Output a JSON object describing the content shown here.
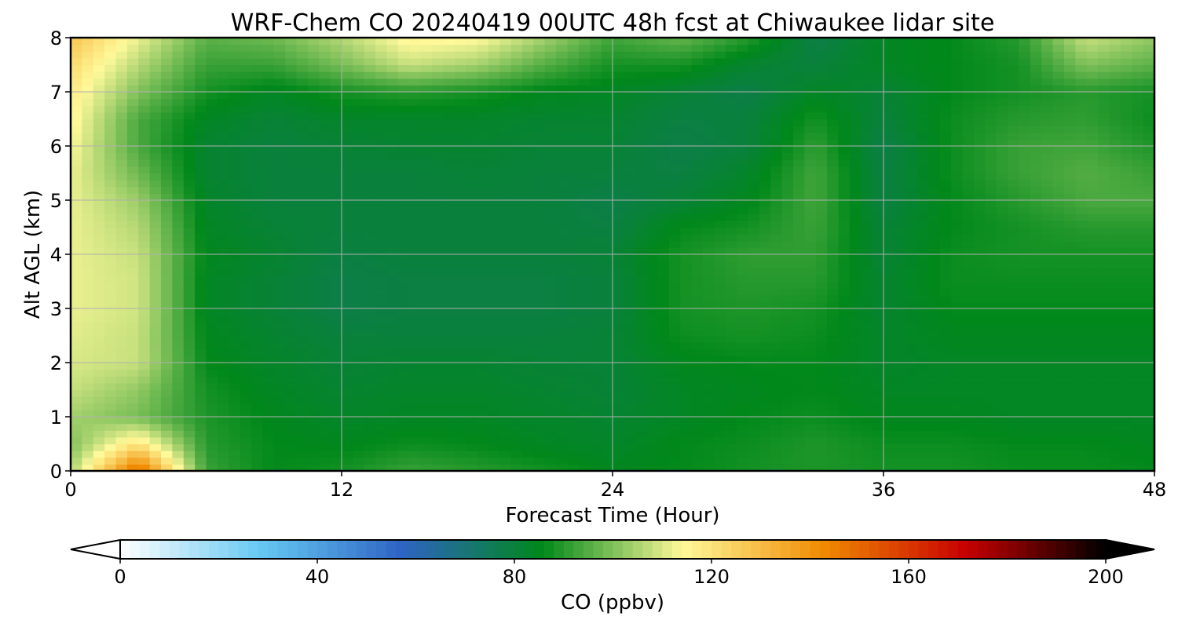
{
  "chart_data": {
    "type": "heatmap",
    "title": "WRF-Chem CO  20240419 00UTC 48h fcst at Chiwaukee lidar site",
    "xlabel": "Forecast Time (Hour)",
    "ylabel": "Alt AGL (km)",
    "x_ticks": [
      "0",
      "12",
      "24",
      "36",
      "48"
    ],
    "y_ticks": [
      "0",
      "1",
      "2",
      "3",
      "4",
      "5",
      "6",
      "7",
      "8"
    ],
    "xlim": [
      0,
      48
    ],
    "ylim": [
      0,
      8
    ],
    "grid": true,
    "x": [
      0,
      3,
      6,
      9,
      12,
      15,
      18,
      21,
      24,
      27,
      30,
      33,
      36,
      39,
      42,
      45,
      48
    ],
    "y": [
      0,
      0.5,
      1,
      1.5,
      2,
      2.5,
      3,
      3.5,
      4,
      4.5,
      5,
      5.5,
      6,
      6.5,
      7,
      7.5,
      8
    ],
    "z": [
      [
        105,
        150,
        92,
        86,
        88,
        92,
        90,
        88,
        85,
        86,
        88,
        89,
        88,
        88,
        87,
        87,
        86
      ],
      [
        100,
        120,
        90,
        86,
        85,
        87,
        86,
        84,
        83,
        86,
        87,
        89,
        87,
        87,
        86,
        86,
        85
      ],
      [
        104,
        99,
        89,
        85,
        83,
        84,
        84,
        83,
        82,
        84,
        86,
        87,
        85,
        85,
        84,
        84,
        84
      ],
      [
        108,
        102,
        88,
        84,
        82,
        83,
        83,
        82,
        81,
        84,
        85,
        86,
        84,
        84,
        84,
        84,
        84
      ],
      [
        110,
        108,
        86,
        83,
        81,
        82,
        82,
        81,
        81,
        85,
        86,
        86,
        83,
        84,
        84,
        84,
        84
      ],
      [
        111,
        108,
        85,
        82,
        80,
        80,
        80,
        80,
        81,
        87,
        88,
        87,
        83,
        85,
        85,
        85,
        85
      ],
      [
        112,
        109,
        84,
        81,
        78,
        79,
        79,
        79,
        80,
        88,
        89,
        88,
        82,
        86,
        86,
        86,
        86
      ],
      [
        112,
        109,
        84,
        81,
        78,
        79,
        79,
        79,
        80,
        88,
        90,
        90,
        82,
        87,
        87,
        87,
        87
      ],
      [
        112,
        108,
        85,
        82,
        79,
        80,
        80,
        80,
        81,
        88,
        91,
        91,
        81,
        87,
        88,
        88,
        88
      ],
      [
        112,
        106,
        84,
        81,
        80,
        80,
        80,
        80,
        79,
        86,
        88,
        92,
        81,
        86,
        88,
        90,
        90
      ],
      [
        112,
        103,
        83,
        80,
        80,
        80,
        80,
        80,
        78,
        81,
        85,
        93,
        79,
        86,
        90,
        94,
        94
      ],
      [
        112,
        98,
        82,
        80,
        80,
        80,
        81,
        80,
        80,
        79,
        83,
        93,
        79,
        87,
        92,
        95,
        92
      ],
      [
        114,
        94,
        82,
        80,
        81,
        82,
        82,
        81,
        81,
        78,
        80,
        91,
        78,
        87,
        92,
        93,
        89
      ],
      [
        116,
        94,
        84,
        81,
        83,
        83,
        83,
        82,
        82,
        79,
        80,
        88,
        80,
        87,
        90,
        91,
        87
      ],
      [
        118,
        100,
        88,
        84,
        88,
        90,
        88,
        85,
        84,
        81,
        78,
        84,
        81,
        86,
        88,
        90,
        88
      ],
      [
        122,
        106,
        92,
        92,
        99,
        108,
        104,
        95,
        88,
        88,
        82,
        80,
        84,
        86,
        88,
        100,
        96
      ],
      [
        128,
        112,
        96,
        98,
        106,
        116,
        115,
        104,
        93,
        97,
        90,
        78,
        84,
        86,
        90,
        108,
        102
      ]
    ],
    "colorbar": {
      "label": "CO  (ppbv)",
      "ticks": [
        "0",
        "40",
        "80",
        "120",
        "160",
        "200"
      ],
      "range": [
        0,
        200
      ],
      "extend": "both",
      "colors": [
        "#ffffff",
        "#66c8f2",
        "#2e64c4",
        "#00881a",
        "#fff99a",
        "#f08a00",
        "#c80000",
        "#000000"
      ]
    }
  }
}
